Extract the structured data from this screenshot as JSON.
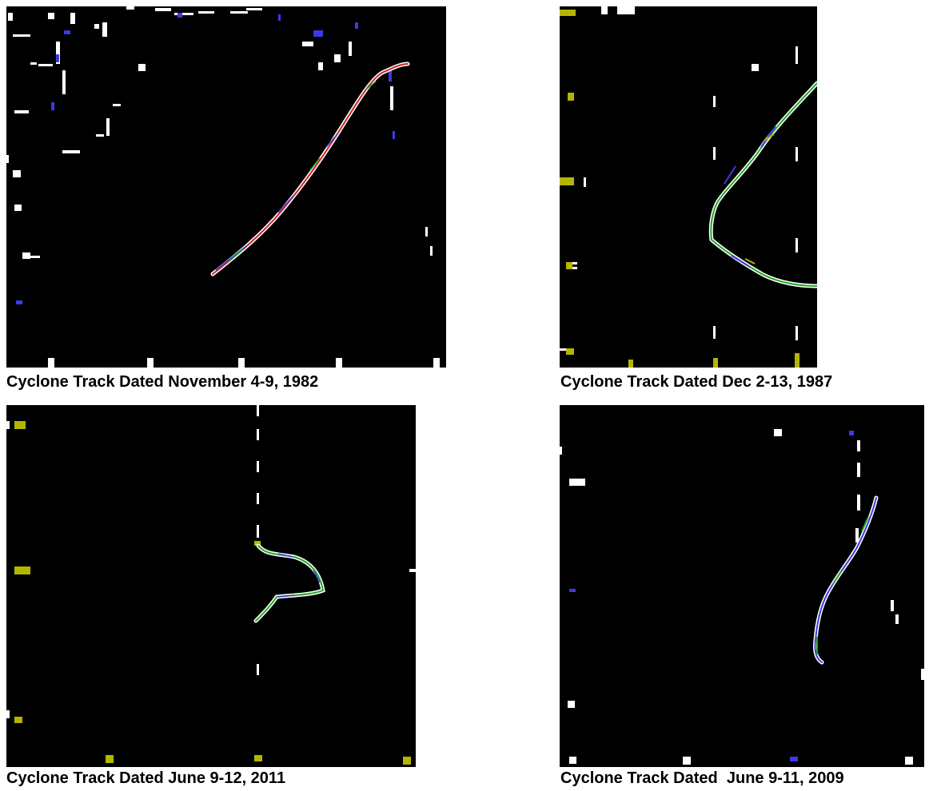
{
  "captions": [
    "Cyclone Track Dated November 4-9, 1982",
    "Cyclone Track Dated Dec 2-13, 1987",
    "Cyclone Track Dated June 9-12, 2011",
    "Cyclone Track Dated  June 9-11, 2009"
  ],
  "colors": {
    "background": "#000000",
    "marker": "#ffffff",
    "track_red": "#d02020",
    "track_green": "#1fa81f",
    "track_blue": "#3a3ae8",
    "track_yellow": "#b5b500",
    "track_white": "#ffffff"
  }
}
